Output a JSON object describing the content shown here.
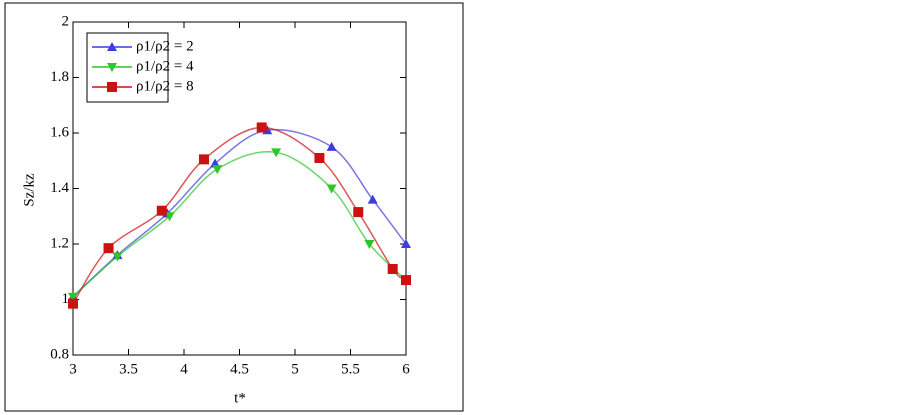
{
  "chart_data": {
    "type": "line",
    "xlabel": "t*",
    "ylabel": "Sz/kz",
    "xlim": [
      3,
      6
    ],
    "xticks": [
      3,
      3.5,
      4,
      4.5,
      5,
      5.5,
      6
    ],
    "ylim": [
      0.8,
      2
    ],
    "yticks": [
      0.8,
      1,
      1.2,
      1.4,
      1.6,
      1.8,
      2
    ],
    "legend": "upper left",
    "series": [
      {
        "name": "ρ1/ρ2 = 2",
        "color": "#3d3ddc",
        "marker": "triangle-up",
        "x": [
          3,
          3.4,
          3.85,
          4.28,
          4.75,
          5.33,
          5.7,
          6
        ],
        "values": [
          1.01,
          1.16,
          1.31,
          1.49,
          1.61,
          1.55,
          1.36,
          1.2
        ]
      },
      {
        "name": "ρ1/ρ2 = 4",
        "color": "#2ec42e",
        "marker": "triangle-down",
        "x": [
          3,
          3.4,
          3.87,
          4.3,
          4.83,
          5.33,
          5.67,
          6
        ],
        "values": [
          1.01,
          1.155,
          1.3,
          1.47,
          1.53,
          1.4,
          1.2,
          1.07
        ]
      },
      {
        "name": "ρ1/ρ2 = 8",
        "color": "#cc1111",
        "marker": "square",
        "x": [
          3,
          3.32,
          3.8,
          4.18,
          4.7,
          5.22,
          5.57,
          5.88,
          6
        ],
        "values": [
          0.985,
          1.185,
          1.32,
          1.505,
          1.62,
          1.51,
          1.315,
          1.11,
          1.07
        ]
      }
    ]
  }
}
